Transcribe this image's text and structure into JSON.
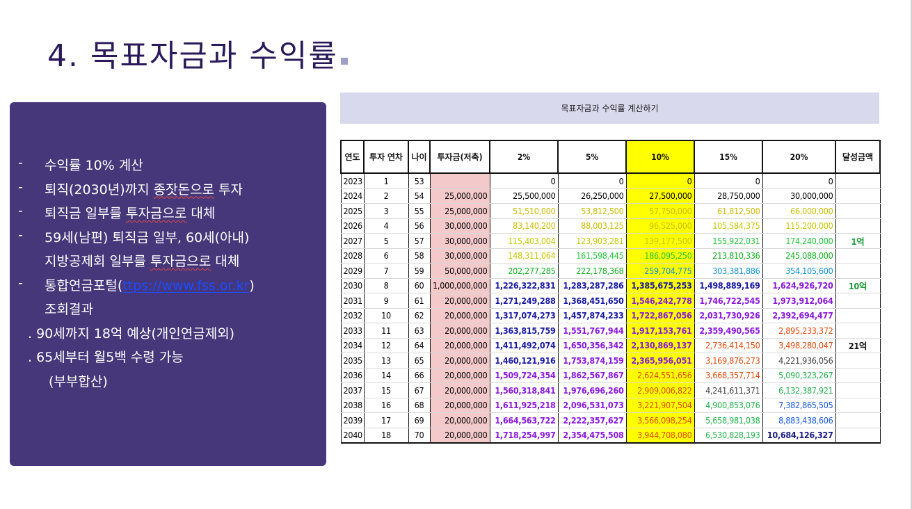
{
  "slide": {
    "number": "4.",
    "title": "목표자금과 수익률"
  },
  "panel": {
    "bullets": [
      {
        "dash": "-",
        "segments": [
          {
            "t": "수익률 10% 계산"
          }
        ]
      },
      {
        "dash": "-",
        "segments": [
          {
            "t": "퇴직(2030년)까지 "
          },
          {
            "t": "종잣돈으로",
            "squig": true
          },
          {
            "t": "  투자"
          }
        ]
      },
      {
        "dash": "-",
        "segments": [
          {
            "t": "퇴직금 일부를 "
          },
          {
            "t": "투자금으로",
            "squig": true
          },
          {
            "t": " 대체"
          }
        ]
      },
      {
        "dash": "-",
        "segments": [
          {
            "t": " 59세(남편) 퇴직금 일부,  60세(아내)"
          }
        ]
      },
      {
        "dash": "",
        "segments": [
          {
            "t": "지방공제회 일부를  "
          },
          {
            "t": "투자금으로",
            "squig": true
          },
          {
            "t": " 대체"
          }
        ]
      },
      {
        "dash": "-",
        "segments": [
          {
            "t": "통합연금포털("
          },
          {
            "t": "ttps://www.fss.or.kr",
            "link": true
          },
          {
            "t": ")"
          }
        ]
      },
      {
        "dash": "",
        "segments": [
          {
            "t": "조회결과"
          }
        ]
      }
    ],
    "notes": [
      ".  90세까지 18억 예상(개인연금제외)",
      ". 65세부터 월5백 수령 가능",
      "(부부합산)"
    ]
  },
  "table": {
    "caption": "목표자금과 수익률 계산하기",
    "headers": [
      "연도",
      "투자 연차",
      "나이",
      "투자금(저축)",
      "2%",
      "5%",
      "10%",
      "15%",
      "20%",
      "달성금액"
    ],
    "rows": [
      {
        "year": "2023",
        "n": "1",
        "age": "53",
        "inv": "",
        "r2": "0",
        "r5": "0",
        "r10": "0",
        "r15": "0",
        "r20": "0",
        "goal": ""
      },
      {
        "year": "2024",
        "n": "2",
        "age": "54",
        "inv": "25,000,000",
        "r2": "25,500,000",
        "r5": "26,250,000",
        "r10": "27,500,000",
        "r15": "28,750,000",
        "r20": "30,000,000",
        "goal": ""
      },
      {
        "year": "2025",
        "n": "3",
        "age": "55",
        "inv": "25,000,000",
        "r2": "51,510,000",
        "r5": "53,812,500",
        "r10": "57,750,000",
        "r15": "61,812,500",
        "r20": "66,000,000",
        "goal": ""
      },
      {
        "year": "2026",
        "n": "4",
        "age": "56",
        "inv": "30,000,000",
        "r2": "83,140,200",
        "r5": "88,003,125",
        "r10": "96,525,000",
        "r15": "105,584,375",
        "r20": "115,200,000",
        "goal": ""
      },
      {
        "year": "2027",
        "n": "5",
        "age": "57",
        "inv": "30,000,000",
        "r2": "115,403,004",
        "r5": "123,903,281",
        "r10": "139,177,500",
        "r15": "155,922,031",
        "r20": "174,240,000",
        "goal": "1억"
      },
      {
        "year": "2028",
        "n": "6",
        "age": "58",
        "inv": "30,000,000",
        "r2": "148,311,064",
        "r5": "161,598,445",
        "r10": "186,095,250",
        "r15": "213,810,336",
        "r20": "245,088,000",
        "goal": ""
      },
      {
        "year": "2029",
        "n": "7",
        "age": "59",
        "inv": "50,000,000",
        "r2": "202,277,285",
        "r5": "222,178,368",
        "r10": "259,704,775",
        "r15": "303,381,886",
        "r20": "354,105,600",
        "goal": ""
      },
      {
        "year": "2030",
        "n": "8",
        "age": "60",
        "inv": "1,000,000,000",
        "r2": "1,226,322,831",
        "r5": "1,283,287,286",
        "r10": "1,385,675,253",
        "r15": "1,498,889,169",
        "r20": "1,624,926,720",
        "goal": "10억"
      },
      {
        "year": "2031",
        "n": "9",
        "age": "61",
        "inv": "20,000,000",
        "r2": "1,271,249,288",
        "r5": "1,368,451,650",
        "r10": "1,546,242,778",
        "r15": "1,746,722,545",
        "r20": "1,973,912,064",
        "goal": ""
      },
      {
        "year": "2032",
        "n": "10",
        "age": "62",
        "inv": "20,000,000",
        "r2": "1,317,074,273",
        "r5": "1,457,874,233",
        "r10": "1,722,867,056",
        "r15": "2,031,730,926",
        "r20": "2,392,694,477",
        "goal": ""
      },
      {
        "year": "2033",
        "n": "11",
        "age": "63",
        "inv": "20,000,000",
        "r2": "1,363,815,759",
        "r5": "1,551,767,944",
        "r10": "1,917,153,761",
        "r15": "2,359,490,565",
        "r20": "2,895,233,372",
        "goal": ""
      },
      {
        "year": "2034",
        "n": "12",
        "age": "64",
        "inv": "20,000,000",
        "r2": "1,411,492,074",
        "r5": "1,650,356,342",
        "r10": "2,130,869,137",
        "r15": "2,736,414,150",
        "r20": "3,498,280,047",
        "goal": "21억"
      },
      {
        "year": "2035",
        "n": "13",
        "age": "65",
        "inv": "20,000,000",
        "r2": "1,460,121,916",
        "r5": "1,753,874,159",
        "r10": "2,365,956,051",
        "r15": "3,169,876,273",
        "r20": "4,221,936,056",
        "goal": ""
      },
      {
        "year": "2036",
        "n": "14",
        "age": "66",
        "inv": "20,000,000",
        "r2": "1,509,724,354",
        "r5": "1,862,567,867",
        "r10": "2,624,551,656",
        "r15": "3,668,357,714",
        "r20": "5,090,323,267",
        "goal": ""
      },
      {
        "year": "2037",
        "n": "15",
        "age": "67",
        "inv": "20,000,000",
        "r2": "1,560,318,841",
        "r5": "1,976,696,260",
        "r10": "2,909,006,822",
        "r15": "4,241,611,371",
        "r20": "6,132,387,921",
        "goal": ""
      },
      {
        "year": "2038",
        "n": "16",
        "age": "68",
        "inv": "20,000,000",
        "r2": "1,611,925,218",
        "r5": "2,096,531,073",
        "r10": "3,221,907,504",
        "r15": "4,900,853,076",
        "r20": "7,382,865,505",
        "goal": ""
      },
      {
        "year": "2039",
        "n": "17",
        "age": "69",
        "inv": "20,000,000",
        "r2": "1,664,563,722",
        "r5": "2,222,357,627",
        "r10": "3,566,098,254",
        "r15": "5,658,981,038",
        "r20": "8,883,438,606",
        "goal": ""
      },
      {
        "year": "2040",
        "n": "18",
        "age": "70",
        "inv": "20,000,000",
        "r2": "1,718,254,997",
        "r5": "2,354,475,508",
        "r10": "3,944,708,080",
        "r15": "6,530,828,193",
        "r20": "10,684,126,327",
        "goal": ""
      }
    ]
  },
  "colors": {
    "title": "#2a1a5a",
    "panel_bg": "#46377a",
    "table_header_bar": "#d9d9ee",
    "investment_cell": "#f3c9ca",
    "ten_percent_column": "#ffff00",
    "goal_text": "#1a9a3a",
    "link": "#1a4cff",
    "value_by_magnitude": {
      "under_100k": "#000000",
      "under_10m": "#000000",
      "under_100m": "#000000",
      "e_50m_100m": "#ccbb00",
      "e_100m_150m": "#c6c600",
      "e_150m_200m": "#22c43a",
      "e_200m_250m": "#11b01e",
      "e_250m_1200m": "#0c8fd6",
      "e_1200m_1500m": "#1a1aa0",
      "e_1500m_2500m": "#8a1ad8",
      "e_2500m_4000m": "#e04a0a",
      "e_4000m_4300m": "#404040",
      "e_4300m_7000m": "#22b04a",
      "e_7000m_9000m": "#1a5ad8",
      "over_9000m": "#1a1a80"
    }
  }
}
